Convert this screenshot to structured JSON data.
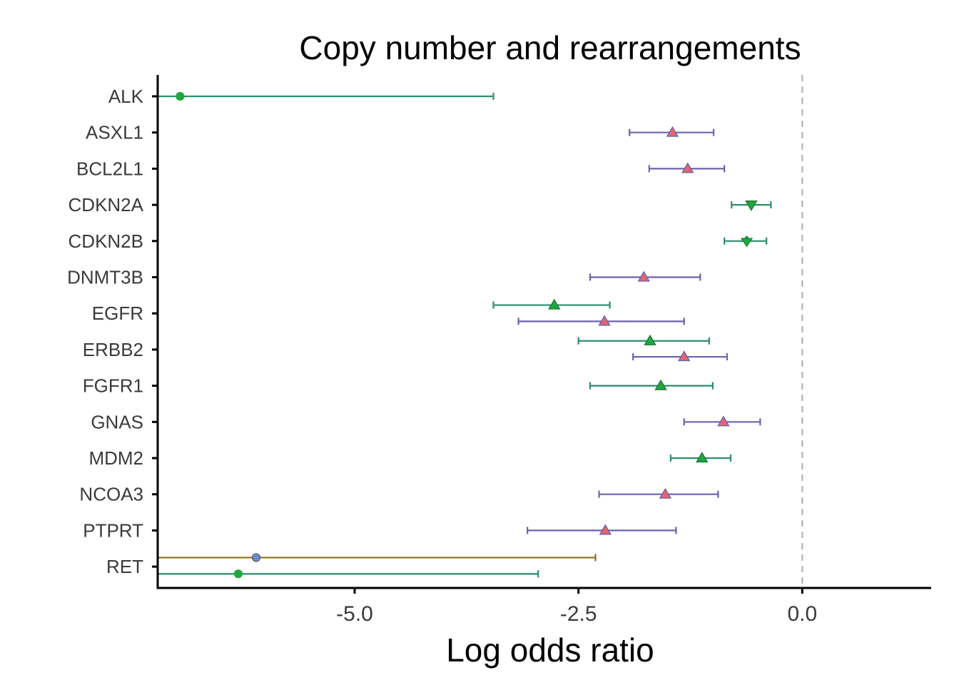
{
  "chart_data": {
    "type": "forest",
    "title": "Copy number and rearrangements",
    "xlabel": "Log odds ratio",
    "ylabel": "",
    "xlim": [
      -7.2,
      1.4
    ],
    "x_ticks": [
      -5.0,
      -2.5,
      0.0
    ],
    "x_tick_labels": [
      "-5.0",
      "-2.5",
      "0.0"
    ],
    "reference_line": 0.0,
    "categories": [
      "ALK",
      "ASXL1",
      "BCL2L1",
      "CDKN2A",
      "CDKN2B",
      "DNMT3B",
      "EGFR",
      "ERBB2",
      "FGFR1",
      "GNAS",
      "MDM2",
      "NCOA3",
      "PTPRT",
      "RET"
    ],
    "colors": {
      "green": "#2a8f6a",
      "purple": "#6b62ad",
      "olive": "#8c6d1e",
      "marker_green": "#1fa843",
      "marker_red": "#e8636b",
      "marker_blue": "#6b8ed6",
      "refline": "#b3b3b3",
      "axis": "#000000"
    },
    "points": [
      {
        "gene": "ALK",
        "estimate": -6.95,
        "lower": -7.2,
        "upper": -3.45,
        "offset": 0,
        "marker": "circle",
        "line_color": "green",
        "fill": "marker_green",
        "clipped_lower": true
      },
      {
        "gene": "ASXL1",
        "estimate": -1.45,
        "lower": -1.93,
        "upper": -0.99,
        "offset": 0,
        "marker": "triangle-up",
        "line_color": "purple",
        "fill": "marker_red"
      },
      {
        "gene": "BCL2L1",
        "estimate": -1.28,
        "lower": -1.71,
        "upper": -0.87,
        "offset": 0,
        "marker": "triangle-up",
        "line_color": "purple",
        "fill": "marker_red"
      },
      {
        "gene": "CDKN2A",
        "estimate": -0.57,
        "lower": -0.79,
        "upper": -0.35,
        "offset": 0,
        "marker": "triangle-down",
        "line_color": "green",
        "fill": "marker_green"
      },
      {
        "gene": "CDKN2B",
        "estimate": -0.62,
        "lower": -0.87,
        "upper": -0.4,
        "offset": 0,
        "marker": "triangle-up-down",
        "line_color": "green",
        "fill": "marker_green"
      },
      {
        "gene": "DNMT3B",
        "estimate": -1.77,
        "lower": -2.37,
        "upper": -1.14,
        "offset": 0,
        "marker": "triangle-up",
        "line_color": "purple",
        "fill": "marker_red"
      },
      {
        "gene": "EGFR",
        "estimate": -2.77,
        "lower": -3.45,
        "upper": -2.15,
        "offset": -0.23,
        "marker": "triangle-up",
        "line_color": "green",
        "fill": "marker_green"
      },
      {
        "gene": "EGFR",
        "estimate": -2.21,
        "lower": -3.17,
        "upper": -1.32,
        "offset": 0.22,
        "marker": "triangle-up",
        "line_color": "purple",
        "fill": "marker_red"
      },
      {
        "gene": "ERBB2",
        "estimate": -1.7,
        "lower": -2.5,
        "upper": -1.04,
        "offset": -0.24,
        "marker": "triangle-up",
        "line_color": "green",
        "fill": "marker_green"
      },
      {
        "gene": "ERBB2",
        "estimate": -1.32,
        "lower": -1.89,
        "upper": -0.84,
        "offset": 0.2,
        "marker": "triangle-up",
        "line_color": "purple",
        "fill": "marker_red"
      },
      {
        "gene": "FGFR1",
        "estimate": -1.58,
        "lower": -2.37,
        "upper": -1.0,
        "offset": 0,
        "marker": "triangle-up",
        "line_color": "green",
        "fill": "marker_green"
      },
      {
        "gene": "GNAS",
        "estimate": -0.88,
        "lower": -1.32,
        "upper": -0.47,
        "offset": 0,
        "marker": "triangle-up",
        "line_color": "purple",
        "fill": "marker_red"
      },
      {
        "gene": "MDM2",
        "estimate": -1.12,
        "lower": -1.47,
        "upper": -0.8,
        "offset": 0,
        "marker": "triangle-up",
        "line_color": "green",
        "fill": "marker_green"
      },
      {
        "gene": "NCOA3",
        "estimate": -1.53,
        "lower": -2.27,
        "upper": -0.94,
        "offset": 0,
        "marker": "triangle-up",
        "line_color": "purple",
        "fill": "marker_red"
      },
      {
        "gene": "PTPRT",
        "estimate": -2.2,
        "lower": -3.07,
        "upper": -1.41,
        "offset": 0,
        "marker": "triangle-up",
        "line_color": "purple",
        "fill": "marker_red"
      },
      {
        "gene": "RET",
        "estimate": -6.1,
        "lower": -7.2,
        "upper": -2.31,
        "offset": -0.25,
        "marker": "circle",
        "line_color": "olive",
        "fill": "marker_blue",
        "clipped_lower": true
      },
      {
        "gene": "RET",
        "estimate": -6.3,
        "lower": -7.2,
        "upper": -2.95,
        "offset": 0.2,
        "marker": "circle",
        "line_color": "green",
        "fill": "marker_green",
        "clipped_lower": true
      }
    ]
  }
}
